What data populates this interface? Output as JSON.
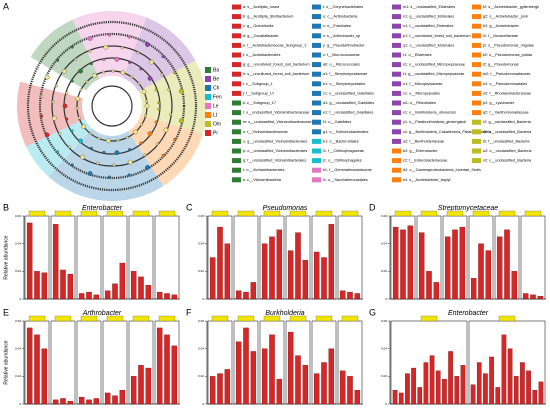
{
  "cladogram": {
    "panel": "A",
    "groups": [
      {
        "label": "Ba",
        "color": "#2e7d32"
      },
      {
        "label": "Be",
        "color": "#8e44ad"
      },
      {
        "label": "Ch",
        "color": "#1f77b4"
      },
      {
        "label": "Fen",
        "color": "#17becf"
      },
      {
        "label": "Le",
        "color": "#e377c2"
      },
      {
        "label": "Lt",
        "color": "#ff7f0e"
      },
      {
        "label": "Om",
        "color": "#bcbd22"
      },
      {
        "label": "Pr",
        "color": "#d62728"
      }
    ],
    "taxa": [
      {
        "label": "a: s__Acidipila_rosea",
        "color": "#d62728"
      },
      {
        "label": "b: g__Acidipila_Silvibacterium",
        "color": "#d62728"
      },
      {
        "label": "c: g__Granulicella",
        "color": "#d62728"
      },
      {
        "label": "d: g__Occallatibacter",
        "color": "#d62728"
      },
      {
        "label": "e: f__Acidobacteriaceae_Subgroup_1",
        "color": "#d62728"
      },
      {
        "label": "f: o__Acidobacteriales",
        "color": "#d62728"
      },
      {
        "label": "g: g__uncultured_forest_soil_bacterium",
        "color": "#d62728"
      },
      {
        "label": "h: s__uncultured_forest_soil_bacterium",
        "color": "#d62728"
      },
      {
        "label": "i: c__Subgroup_1",
        "color": "#d62728"
      },
      {
        "label": "j: f__Subgroup_17",
        "color": "#d62728"
      },
      {
        "label": "k: c__Subgroup_17",
        "color": "#2e7d32"
      },
      {
        "label": "l: o__unclassified_Vicinamibacteraceae",
        "color": "#2e7d32"
      },
      {
        "label": "m: s__unclassified_Vicinamibacteraceae",
        "color": "#2e7d32"
      },
      {
        "label": "n: f__Vicinamibacteraceae",
        "color": "#2e7d32"
      },
      {
        "label": "o: g__unclassified_Vicinamibacterales",
        "color": "#2e7d32"
      },
      {
        "label": "p: o__unclassified_Vicinamibacterales",
        "color": "#2e7d32"
      },
      {
        "label": "q: f__unclassified_Vicinamibacterales",
        "color": "#2e7d32"
      },
      {
        "label": "r: o__Vicinamibacterales",
        "color": "#2e7d32"
      },
      {
        "label": "s: c__Vicinamibacteria",
        "color": "#2e7d32"
      },
      {
        "label": "t: o__Corynebacteriales",
        "color": "#1f77b4"
      },
      {
        "label": "u: c__Actinobacteria",
        "color": "#1f77b4"
      },
      {
        "label": "v: o__Frankiales",
        "color": "#1f77b4"
      },
      {
        "label": "x: s__Arthrobacter_sp",
        "color": "#1f77b4"
      },
      {
        "label": "y: g__Pseudarthrobacter",
        "color": "#1f77b4"
      },
      {
        "label": "z: f__Micrococcaceae",
        "color": "#1f77b4"
      },
      {
        "label": "a0: o__Micrococcales",
        "color": "#1f77b4"
      },
      {
        "label": "a1: f__Streptomycetaceae",
        "color": "#1f77b4"
      },
      {
        "label": "b1: o__Streptomycetales",
        "color": "#1f77b4"
      },
      {
        "label": "c1: s__unclassified_Gaiellales",
        "color": "#1f77b4"
      },
      {
        "label": "d1: g__unclassified_Gaiellales",
        "color": "#1f77b4"
      },
      {
        "label": "e1: f__unclassified_Gaiellales",
        "color": "#1f77b4"
      },
      {
        "label": "f1: o__Gaiellales",
        "color": "#1f77b4"
      },
      {
        "label": "g1: o__Solirubrobacterales",
        "color": "#1f77b4"
      },
      {
        "label": "h1: o__Bacteroidales",
        "color": "#17becf"
      },
      {
        "label": "i1: f__Chitinophagaceae",
        "color": "#17becf"
      },
      {
        "label": "j1: o__Chitinophagales",
        "color": "#17becf"
      },
      {
        "label": "k1: f__Gemmatimonadaceae",
        "color": "#e377c2"
      },
      {
        "label": "l1: o__Saccharimonadales",
        "color": "#e377c2"
      },
      {
        "label": "m1: s__unclassified_Elsterales",
        "color": "#8e44ad"
      },
      {
        "label": "n1: g__unclassified_Elsterales",
        "color": "#8e44ad"
      },
      {
        "label": "o1: f__unclassified_Elsterales",
        "color": "#8e44ad"
      },
      {
        "label": "p1: f__uncultured_forest_soil_bacterium",
        "color": "#8e44ad"
      },
      {
        "label": "q1: o__unclassified_Elsterales",
        "color": "#8e44ad"
      },
      {
        "label": "r1: o__Elsterales",
        "color": "#8e44ad"
      },
      {
        "label": "s1: s__unclassified_Micropepsaceae",
        "color": "#8e44ad"
      },
      {
        "label": "t1: g__unclassified_Micropepsaceae",
        "color": "#8e44ad"
      },
      {
        "label": "u1: f__Micropepsaceae",
        "color": "#8e44ad"
      },
      {
        "label": "v1: o__Micropepsales",
        "color": "#8e44ad"
      },
      {
        "label": "w1: o__Rhizobiales",
        "color": "#8e44ad"
      },
      {
        "label": "x1: s__Burkholderia_ubonensis",
        "color": "#8e44ad"
      },
      {
        "label": "y1: s__Paraburkholderia_ginsengisoli",
        "color": "#8e44ad"
      },
      {
        "label": "z1: g__Burkholderia_Caballeronia_Paraburkholderia",
        "color": "#8e44ad"
      },
      {
        "label": "a2: f__Burkholderiaceae",
        "color": "#8e44ad"
      },
      {
        "label": "b2: g__Enterobacter",
        "color": "#ff7f0e"
      },
      {
        "label": "c2: f__Enterobacteriaceae",
        "color": "#ff7f0e"
      },
      {
        "label": "d2: o__Gammaproteobacteria_Incertae_Sedis",
        "color": "#ff7f0e"
      },
      {
        "label": "e2: s__Acinetobacter_baylyi",
        "color": "#ff7f0e"
      },
      {
        "label": "f2: s__Acinetobacter_gyllenbergii",
        "color": "#ff7f0e"
      },
      {
        "label": "g2: s__Acinetobacter_junii",
        "color": "#ff7f0e"
      },
      {
        "label": "h2: g__Acinetobacter",
        "color": "#ff7f0e"
      },
      {
        "label": "i2: f__Moraxellaceae",
        "color": "#ff7f0e"
      },
      {
        "label": "j2: s__Pseudomonas_migulae",
        "color": "#ff7f0e"
      },
      {
        "label": "k2: s__Pseudomonas_putida",
        "color": "#ff7f0e"
      },
      {
        "label": "l2: g__Pseudomonas",
        "color": "#ff7f0e"
      },
      {
        "label": "m2: f__Pseudomonadaceae",
        "color": "#ff7f0e"
      },
      {
        "label": "n2: o__Pseudomonadales",
        "color": "#ff7f0e"
      },
      {
        "label": "o2: f__Rhodanobacteraceae",
        "color": "#ff7f0e"
      },
      {
        "label": "p2: g__Lysobacter",
        "color": "#ff7f0e"
      },
      {
        "label": "q2: f__Xanthomonadaceae",
        "color": "#ff7f0e"
      },
      {
        "label": "r2: g__unclassified_Bacteria",
        "color": "#bcbd22"
      },
      {
        "label": "s2: s__unclassified_Bacteria",
        "color": "#bcbd22"
      },
      {
        "label": "t2: f__unclassified_Bacteria",
        "color": "#bcbd22"
      },
      {
        "label": "u2: o__unclassified_Bacteria",
        "color": "#bcbd22"
      },
      {
        "label": "v2: c__unclassified_Bacteria",
        "color": "#bcbd22"
      }
    ]
  },
  "chart_data": [
    {
      "type": "bar",
      "panel": "B",
      "title": "Enterobacter",
      "y_label": "Relative abundance",
      "color": "#d62728",
      "ylim": [
        0,
        0.06
      ],
      "yticks": [
        0,
        0.02,
        0.04,
        0.06
      ],
      "values": [
        0.055,
        0.02,
        0.019,
        0.054,
        0.021,
        0.018,
        0.004,
        0.005,
        0.003,
        0.006,
        0.011,
        0.026,
        0.02,
        0.016,
        0.01,
        0.005,
        0.004,
        0.003
      ]
    },
    {
      "type": "bar",
      "panel": "C",
      "title": "Pseudomonas",
      "color": "#d62728",
      "ylim": [
        0,
        0.06
      ],
      "yticks": [
        0,
        0.02,
        0.04,
        0.06
      ],
      "values": [
        0.03,
        0.052,
        0.04,
        0.006,
        0.005,
        0.012,
        0.04,
        0.045,
        0.05,
        0.035,
        0.048,
        0.028,
        0.034,
        0.03,
        0.054,
        0.006,
        0.005,
        0.004
      ]
    },
    {
      "type": "bar",
      "panel": "D",
      "title": "Streptomycetaceae",
      "color": "#d62728",
      "ylim": [
        0,
        0.06
      ],
      "yticks": [
        0,
        0.02,
        0.04,
        0.06
      ],
      "values": [
        0.052,
        0.05,
        0.053,
        0.048,
        0.02,
        0.012,
        0.045,
        0.05,
        0.052,
        0.015,
        0.04,
        0.035,
        0.045,
        0.05,
        0.02,
        0.004,
        0.003,
        0.002
      ]
    },
    {
      "type": "bar",
      "panel": "E",
      "title": "Arthrobacter",
      "y_label": "Relative abundance",
      "color": "#d62728",
      "ylim": [
        0,
        0.06
      ],
      "yticks": [
        0,
        0.02,
        0.04,
        0.06
      ],
      "values": [
        0.055,
        0.05,
        0.04,
        0.003,
        0.004,
        0.002,
        0.005,
        0.003,
        0.004,
        0.008,
        0.006,
        0.01,
        0.02,
        0.028,
        0.026,
        0.055,
        0.05,
        0.042
      ]
    },
    {
      "type": "bar",
      "panel": "F",
      "title": "Burkholderia",
      "color": "#d62728",
      "ylim": [
        0,
        0.06
      ],
      "yticks": [
        0,
        0.02,
        0.04,
        0.06
      ],
      "values": [
        0.02,
        0.022,
        0.025,
        0.045,
        0.055,
        0.038,
        0.04,
        0.05,
        0.018,
        0.052,
        0.035,
        0.028,
        0.022,
        0.03,
        0.04,
        0.024,
        0.02,
        0.01
      ]
    },
    {
      "type": "bar",
      "panel": "G",
      "title": "Enterobacter",
      "color": "#d62728",
      "ylim": [
        0,
        0.06
      ],
      "yticks": [
        0,
        0.02,
        0.04,
        0.06
      ],
      "values": [
        0.01,
        0.008,
        0.022,
        0.026,
        0.012,
        0.03,
        0.035,
        0.024,
        0.018,
        0.038,
        0.02,
        0.028,
        0.014,
        0.03,
        0.022,
        0.034,
        0.012,
        0.05,
        0.04,
        0.02,
        0.03,
        0.024,
        0.01,
        0.016
      ]
    }
  ]
}
